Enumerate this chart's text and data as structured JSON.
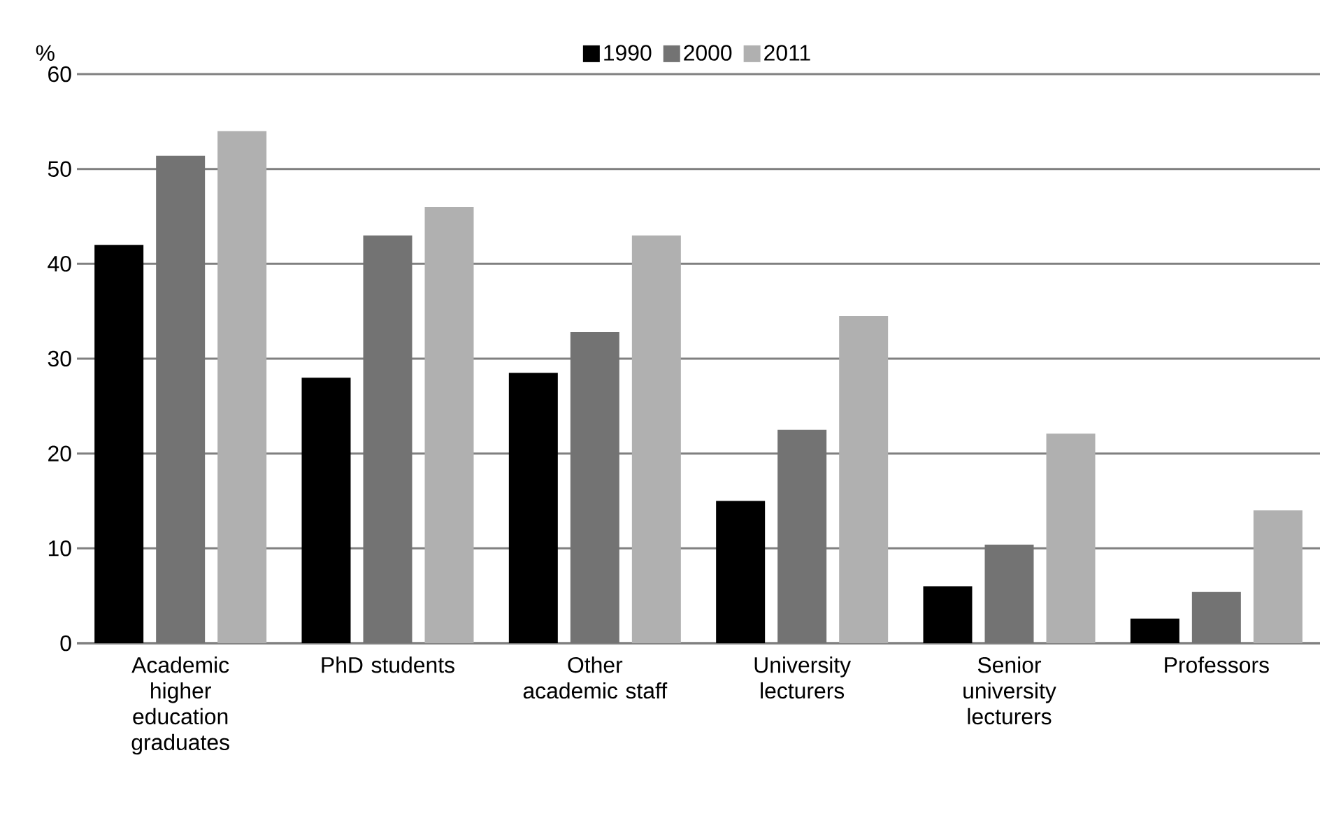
{
  "chart_data": {
    "type": "bar",
    "ylabel": "%",
    "categories": [
      "Academic higher education graduates",
      "PhD students",
      "Other academic staff",
      "University lecturers",
      "Senior university lecturers",
      "Professors"
    ],
    "series": [
      {
        "name": "1990",
        "color": "#000000",
        "values": [
          42.0,
          28.0,
          28.5,
          15.0,
          6.0,
          2.6
        ]
      },
      {
        "name": "2000",
        "color": "#737373",
        "values": [
          51.4,
          43.0,
          32.8,
          22.5,
          10.4,
          5.4
        ]
      },
      {
        "name": "2011",
        "color": "#b0b0b0",
        "values": [
          54.0,
          46.0,
          43.0,
          34.5,
          22.1,
          14.0
        ]
      }
    ],
    "ylim": [
      0,
      60
    ],
    "yticks": [
      0,
      10,
      20,
      30,
      40,
      50,
      60
    ],
    "grid": "y",
    "legend": "top"
  }
}
